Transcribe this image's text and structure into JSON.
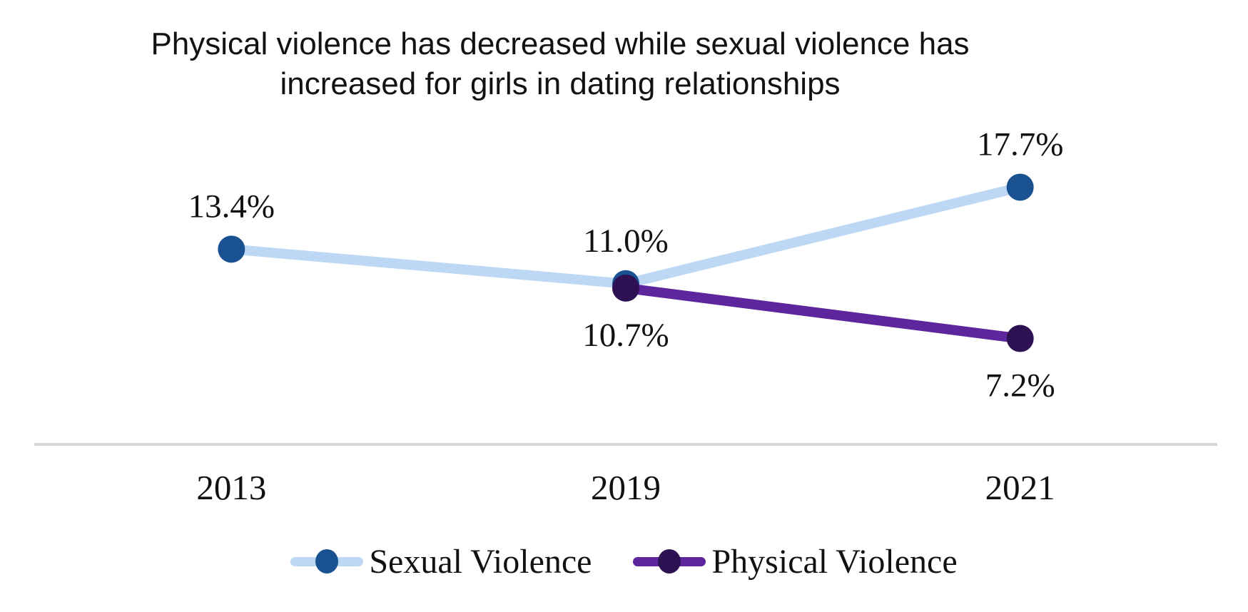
{
  "title": {
    "line1": "Physical violence has decreased while sexual violence has",
    "line2": "increased for girls in dating relationships"
  },
  "chart_data": {
    "type": "line",
    "title": "Physical violence has decreased while sexual violence has increased for girls in dating relationships",
    "categories": [
      "2013",
      "2019",
      "2021"
    ],
    "series": [
      {
        "name": "Sexual Violence",
        "values": [
          13.4,
          11.0,
          17.7
        ],
        "data_labels": [
          "13.4%",
          "11.0%",
          "17.7%"
        ],
        "label_side": [
          "above",
          "above",
          "above"
        ],
        "line_color": "#bdd8f5",
        "marker_color": "#1a5291"
      },
      {
        "name": "Physical Violence",
        "values": [
          null,
          10.7,
          7.2
        ],
        "data_labels": [
          null,
          "10.7%",
          "7.2%"
        ],
        "label_side": [
          null,
          "below",
          "below"
        ],
        "line_color": "#5e269c",
        "marker_color": "#2e1152"
      }
    ],
    "xlabel": "",
    "ylabel": "",
    "ylim": [
      0,
      30
    ],
    "grid": false,
    "x_axis_line_color": "#d5d5d5",
    "legend_position": "bottom",
    "text_color": "#111111"
  }
}
